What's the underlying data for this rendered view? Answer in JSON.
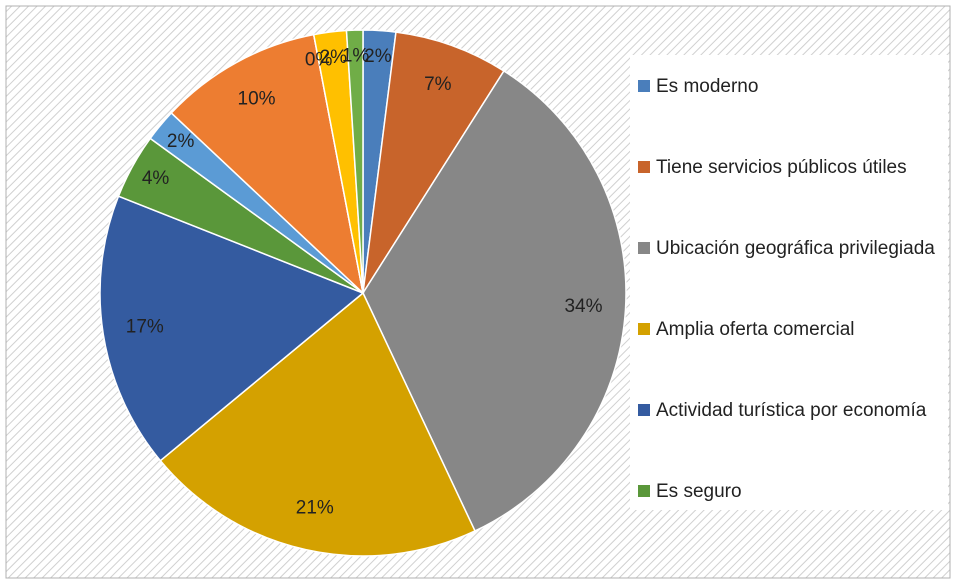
{
  "chart_data": {
    "type": "pie",
    "categories": [
      "Es moderno",
      "Tiene servicios públicos útiles",
      "Ubicación  geográfica privilegiada",
      "Amplia oferta comercial",
      "Actividad turística por economía",
      "Es seguro",
      null,
      null,
      null,
      null,
      null
    ],
    "values": [
      2,
      7,
      34,
      21,
      17,
      4,
      2,
      10,
      0,
      2,
      1
    ],
    "value_labels": [
      "2%",
      "7%",
      "34%",
      "21%",
      "17%",
      "4%",
      "2%",
      "10%",
      "0%",
      "2%",
      "1%"
    ],
    "colors": [
      "#4a7ebb",
      "#c8642b",
      "#878787",
      "#d4a100",
      "#345ba0",
      "#5a973a",
      "#5b9bd5",
      "#ed7d31",
      "#a5a5a5",
      "#ffc000",
      "#70ad47"
    ],
    "legend": "right"
  }
}
